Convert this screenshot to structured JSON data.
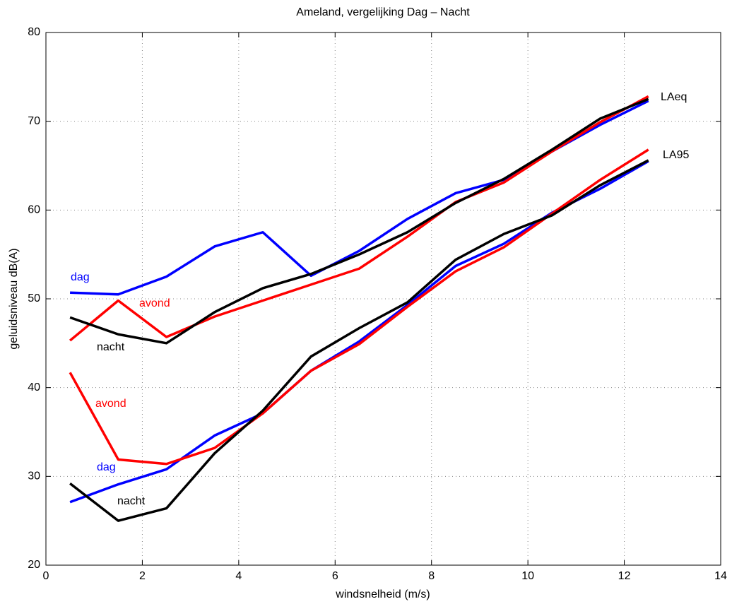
{
  "chart_data": {
    "type": "line",
    "title": "Ameland, vergelijking Dag – Nacht",
    "xlabel": "windsnelheid (m/s)",
    "ylabel": "geluidsniveau dB(A)",
    "x": [
      0.5,
      1.5,
      2.5,
      3.5,
      4.5,
      5.5,
      6.5,
      7.5,
      8.5,
      9.5,
      10.5,
      11.5,
      12.5
    ],
    "series": [
      {
        "name": "dag",
        "color": "#0000ff",
        "values": [
          50.7,
          50.5,
          52.5,
          55.9,
          57.5,
          52.6,
          55.4,
          59.0,
          61.9,
          63.4,
          66.6,
          69.6,
          72.3
        ]
      },
      {
        "name": "avond",
        "color": "#ff0000",
        "values": [
          45.3,
          49.8,
          45.7,
          48.0,
          49.8,
          51.6,
          53.4,
          57.0,
          60.9,
          63.1,
          66.6,
          69.9,
          72.8
        ]
      },
      {
        "name": "nacht",
        "color": "#000000",
        "values": [
          47.9,
          46.0,
          45.0,
          48.5,
          51.2,
          52.8,
          55.0,
          57.5,
          60.8,
          63.5,
          66.8,
          70.3,
          72.5
        ]
      },
      {
        "name": "dag",
        "color": "#0000ff",
        "values": [
          27.1,
          29.1,
          30.8,
          34.6,
          37.1,
          41.9,
          45.2,
          49.3,
          53.7,
          56.2,
          59.7,
          62.4,
          65.5
        ]
      },
      {
        "name": "avond",
        "color": "#ff0000",
        "values": [
          41.7,
          31.9,
          31.4,
          33.2,
          37.1,
          41.9,
          44.9,
          49.1,
          53.1,
          55.8,
          59.6,
          63.4,
          66.8
        ]
      },
      {
        "name": "nacht",
        "color": "#000000",
        "values": [
          29.2,
          25.0,
          26.4,
          32.6,
          37.4,
          43.5,
          46.7,
          49.6,
          54.4,
          57.3,
          59.4,
          62.8,
          65.6
        ]
      }
    ],
    "annotations": [
      "LAeq",
      "LA95"
    ],
    "xlim": [
      0,
      14
    ],
    "xticks": [
      0,
      2,
      4,
      6,
      8,
      10,
      12,
      14
    ],
    "ylim": [
      20,
      80
    ],
    "yticks": [
      20,
      30,
      40,
      50,
      60,
      70,
      80
    ],
    "grid": true
  }
}
